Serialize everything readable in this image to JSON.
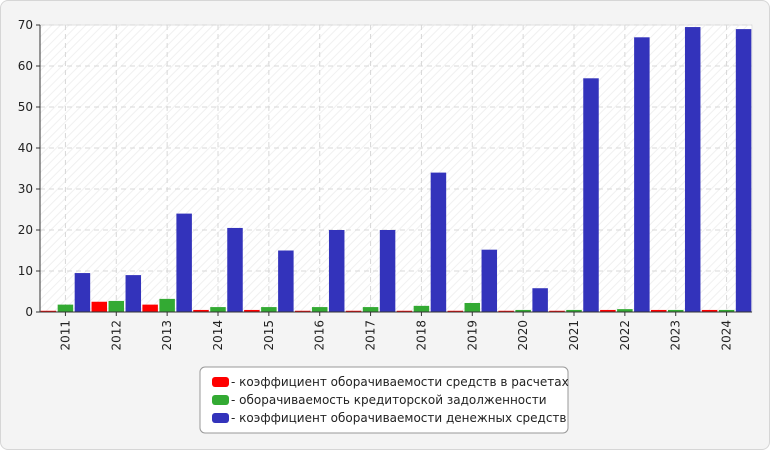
{
  "chart_data": {
    "type": "bar",
    "categories": [
      "2011",
      "2012",
      "2013",
      "2014",
      "2015",
      "2016",
      "2017",
      "2018",
      "2019",
      "2020",
      "2021",
      "2022",
      "2023",
      "2024"
    ],
    "series": [
      {
        "name": "- коэффициент оборачиваемости средств в расчетах",
        "color": "#ff0000",
        "values": [
          0.3,
          2.5,
          1.8,
          0.5,
          0.5,
          0.3,
          0.3,
          0.3,
          0.3,
          0.3,
          0.3,
          0.5,
          0.5,
          0.5
        ]
      },
      {
        "name": "- оборачиваемость кредиторской задолженности",
        "color": "#33aa33",
        "values": [
          1.8,
          2.7,
          3.2,
          1.2,
          1.2,
          1.2,
          1.2,
          1.5,
          2.2,
          0.5,
          0.5,
          0.7,
          0.5,
          0.5
        ]
      },
      {
        "name": "- коэффициент оборачиваемости денежных средств",
        "color": "#3333bb",
        "values": [
          9.5,
          9.0,
          24.0,
          20.5,
          15.0,
          20.0,
          20.0,
          34.0,
          15.2,
          5.8,
          57.0,
          67.0,
          69.5,
          69.0
        ]
      }
    ],
    "ylim": [
      0,
      70
    ],
    "yticks": [
      0,
      10,
      20,
      30,
      40,
      50,
      60,
      70
    ],
    "grid": true,
    "legend_position": "bottom-center"
  }
}
